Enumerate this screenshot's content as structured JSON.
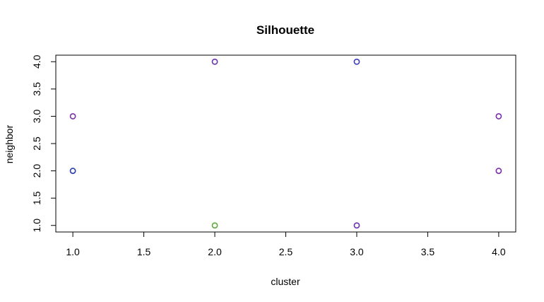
{
  "chart_data": {
    "type": "scatter",
    "title": "Silhouette",
    "xlabel": "cluster",
    "ylabel": "neighbor",
    "xlim": [
      0.88,
      4.12
    ],
    "ylim": [
      0.88,
      4.12
    ],
    "xticks": [
      "1.0",
      "1.5",
      "2.0",
      "2.5",
      "3.0",
      "3.5",
      "4.0"
    ],
    "yticks": [
      "1.0",
      "1.5",
      "2.0",
      "2.5",
      "3.0",
      "3.5",
      "4.0"
    ],
    "grid": false,
    "points": [
      {
        "x": 1,
        "y": 3,
        "color": "#7b2fa8"
      },
      {
        "x": 1,
        "y": 2,
        "color": "#2a3fb0"
      },
      {
        "x": 2,
        "y": 4,
        "color": "#6a30b5"
      },
      {
        "x": 2,
        "y": 1,
        "color": "#5aa83a"
      },
      {
        "x": 3,
        "y": 4,
        "color": "#3a3dbd"
      },
      {
        "x": 3,
        "y": 1,
        "color": "#6a30b5"
      },
      {
        "x": 4,
        "y": 3,
        "color": "#7b2fa8"
      },
      {
        "x": 4,
        "y": 2,
        "color": "#7b2fa8"
      }
    ]
  }
}
